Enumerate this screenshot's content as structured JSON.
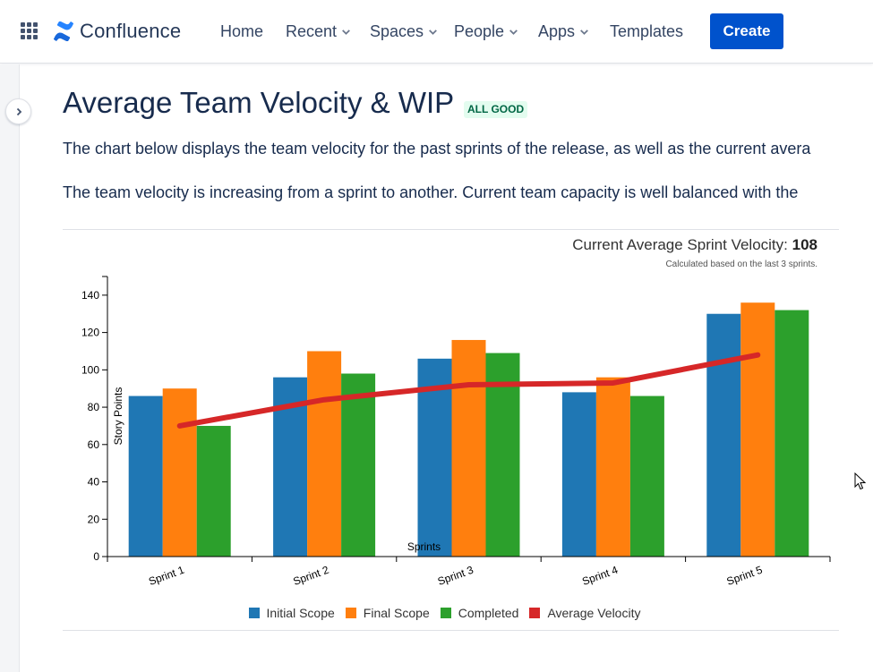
{
  "topnav": {
    "logo_text": "Confluence",
    "items": [
      {
        "label": "Home",
        "dropdown": false
      },
      {
        "label": "Recent",
        "dropdown": true
      },
      {
        "label": "Spaces",
        "dropdown": true
      },
      {
        "label": "People",
        "dropdown": true
      },
      {
        "label": "Apps",
        "dropdown": true
      },
      {
        "label": "Templates",
        "dropdown": false
      }
    ],
    "create_label": "Create",
    "icons": {
      "app_switcher": "grid-icon",
      "logo": "confluence-logo-icon",
      "dropdown": "chevron-down-icon"
    }
  },
  "sidebar": {
    "expand_icon": "chevron-right-icon"
  },
  "page": {
    "title": "Average Team Velocity & WIP",
    "status": "ALL GOOD",
    "paragraphs": [
      "The chart below displays the team velocity for the past sprints of the release, as well as the current avera",
      "The team velocity is increasing from a sprint to another. Current team capacity is well balanced with the"
    ]
  },
  "velocity": {
    "label": "Current Average Sprint Velocity:",
    "value": "108",
    "note": "Calculated based on the last 3 sprints."
  },
  "colors": {
    "accent": "#0052cc",
    "initial": "#1f77b4",
    "final": "#ff7f0e",
    "completed": "#2ca02c",
    "average": "#d62728",
    "status_bg": "#e3fcef",
    "status_text": "#006644"
  },
  "chart_data": {
    "type": "bar",
    "xlabel": "Sprints",
    "ylabel": "Story Points",
    "ylim": [
      0,
      150
    ],
    "yticks": [
      0,
      20,
      40,
      60,
      80,
      100,
      120,
      140
    ],
    "categories": [
      "Sprint 1",
      "Sprint 2",
      "Sprint 3",
      "Sprint 4",
      "Sprint 5"
    ],
    "series": [
      {
        "name": "Initial Scope",
        "type": "bar",
        "color": "#1f77b4",
        "values": [
          86,
          96,
          106,
          88,
          130
        ]
      },
      {
        "name": "Final Scope",
        "type": "bar",
        "color": "#ff7f0e",
        "values": [
          90,
          110,
          116,
          96,
          136
        ]
      },
      {
        "name": "Completed",
        "type": "bar",
        "color": "#2ca02c",
        "values": [
          70,
          98,
          109,
          86,
          132
        ]
      },
      {
        "name": "Average Velocity",
        "type": "line",
        "color": "#d62728",
        "values": [
          70,
          84,
          92,
          93,
          108
        ]
      }
    ],
    "legend": "bottom",
    "grid": false
  }
}
